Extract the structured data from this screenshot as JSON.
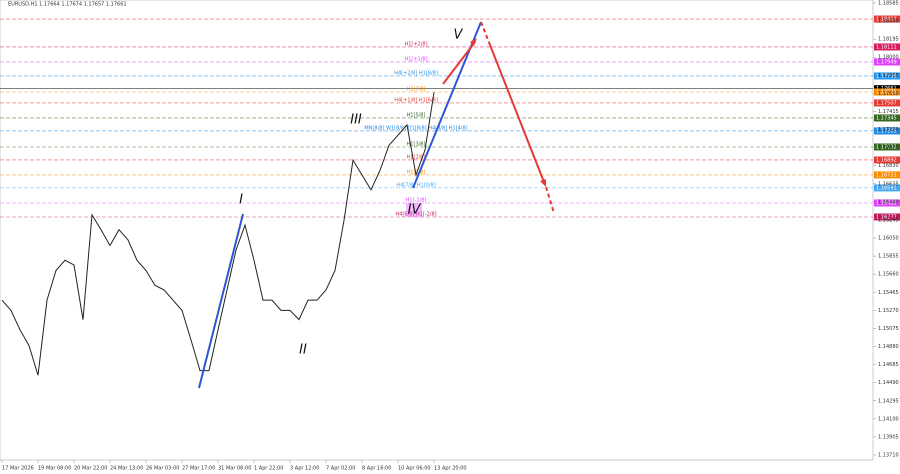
{
  "chart_data": {
    "type": "line",
    "title": "EURUSD,H1  1.17664 1.17674 1.17657 1.17661",
    "categories": [
      "17 Mar 2026",
      null,
      null,
      null,
      "19 Mar 08:00",
      null,
      null,
      null,
      "20 Mar 22:00",
      null,
      null,
      null,
      "24 Mar 13:00",
      null,
      null,
      null,
      "26 Mar 03:00",
      null,
      null,
      null,
      "27 Mar 17:00",
      null,
      null,
      null,
      "31 Mar 08:00",
      null,
      null,
      null,
      "1 Apr 22:00",
      null,
      null,
      null,
      "3 Apr 12:00",
      null,
      null,
      null,
      "7 Apr 02:00",
      null,
      null,
      null,
      "8 Apr 16:00",
      null,
      null,
      null,
      "10 Apr 06:00",
      null,
      null,
      null,
      "13 Apr 20:00"
    ],
    "series": [
      {
        "name": "EURUSD,H1",
        "color": "#222222",
        "values": [
          1.1538,
          1.1527,
          1.1506,
          1.1489,
          1.1457,
          1.1538,
          1.157,
          1.1581,
          1.1576,
          1.1517,
          1.163,
          1.1614,
          1.1597,
          1.1614,
          1.1603,
          1.1581,
          1.157,
          1.1554,
          1.1549,
          1.1538,
          1.1527,
          1.1495,
          1.1462,
          1.1462,
          1.1506,
          1.1549,
          1.1592,
          1.1619,
          1.1581,
          1.1538,
          1.1538,
          1.1527,
          1.1527,
          1.1517,
          1.1538,
          1.1538,
          1.1549,
          1.157,
          1.1624,
          1.1689,
          1.1673,
          1.1657,
          1.1678,
          1.1705,
          1.1716,
          1.1727,
          1.1673,
          1.17,
          1.1762
        ]
      }
    ],
    "ylim": [
      1.1371,
      1.18585
    ],
    "yticks": [
      1.18585,
      {
        "value": 1.1839,
        "label": "1.18390"
      },
      1.18195,
      {
        "value": 1.18,
        "label": "1.18000"
      },
      1.17805,
      {
        "value": 1.1761,
        "label": "1.17610"
      },
      1.17415,
      {
        "value": 1.1722,
        "label": "1.17220"
      },
      1.17025,
      {
        "value": 1.1683,
        "label": "1.16830"
      },
      1.16635,
      {
        "value": 1.1644,
        "label": "1.16440"
      },
      1.16245,
      {
        "value": 1.1605,
        "label": "1.16050"
      },
      1.15855,
      {
        "value": 1.1566,
        "label": "1.15660"
      },
      1.15465,
      {
        "value": 1.1527,
        "label": "1.15270"
      },
      1.15075,
      {
        "value": 1.1488,
        "label": "1.14880"
      },
      1.14685,
      {
        "value": 1.1449,
        "label": "1.14490"
      },
      1.14295,
      {
        "value": 1.141,
        "label": "1.14100"
      },
      1.13905,
      {
        "value": 1.1371,
        "label": "1.13710"
      }
    ],
    "levels": [
      {
        "value": 1.18412,
        "color": "#e53935"
      },
      {
        "value": 1.18111,
        "color": "#d81b60",
        "label": "H1[+2/8]"
      },
      {
        "value": 1.17949,
        "color": "#e040fb",
        "label": "H1[+1/8]"
      },
      {
        "value": 1.17798,
        "color": "#2196f3",
        "label": "H4[+2/8] H1[8/8]"
      },
      {
        "value": 1.17661,
        "color": "#000000"
      },
      {
        "value": 1.17625,
        "color": "#fb8c00",
        "label": "H1[7/8]"
      },
      {
        "value": 1.17507,
        "color": "#e53935",
        "label": "H4[+1/8] H1[6/8]"
      },
      {
        "value": 1.17345,
        "color": "#33691e",
        "label": "H1[5/8]"
      },
      {
        "value": 1.17205,
        "color": "#1e88e5",
        "label": "MN[8/8] W1[8/8] D1[8/8] H4[8/8] H1[4/8]"
      },
      {
        "value": 1.17032,
        "color": "#33691e",
        "label": "H1[3/8]"
      },
      {
        "value": 1.16892,
        "color": "#e53935",
        "label": "H1[2/8]"
      },
      {
        "value": 1.16731,
        "color": "#fb8c00",
        "label": "H1[1/8]"
      },
      {
        "value": 1.16591,
        "color": "#42a5f5",
        "label": "H4[7/8] H1[0/8]"
      },
      {
        "value": 1.16428,
        "color": "#e040fb",
        "label": "H1[-1/8]"
      },
      {
        "value": 1.16277,
        "color": "#c2185b",
        "label": "H4[6/8] H1[-2/8]"
      }
    ],
    "annotations": [
      "I",
      "II",
      "III",
      "IV",
      "V"
    ]
  }
}
